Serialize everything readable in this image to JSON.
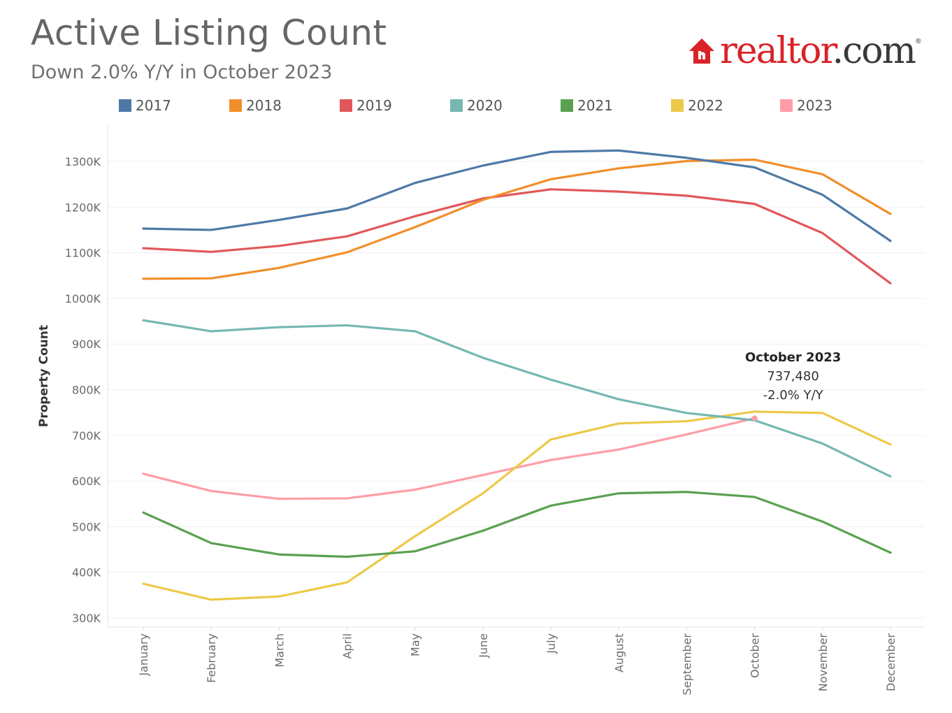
{
  "header": {
    "title": "Active Listing Count",
    "subtitle": "Down 2.0% Y/Y in October 2023",
    "logo_text_red": "realtor",
    "logo_text_dark": ".com",
    "logo_reg": "®"
  },
  "colors": {
    "2017": "#4e79a7",
    "2018": "#f28e2b",
    "2019": "#e15759",
    "2020": "#76b7b2",
    "2021": "#59a14f",
    "2022": "#edc948",
    "2023": "#ff9da7",
    "brand": "#d92228"
  },
  "chart_data": {
    "type": "line",
    "title": "Active Listing Count",
    "subtitle": "Down 2.0% Y/Y in October 2023",
    "xlabel": "",
    "ylabel": "Property Count",
    "ylim": [
      290000,
      1370000
    ],
    "yticks": [
      300000,
      400000,
      500000,
      600000,
      700000,
      800000,
      900000,
      1000000,
      1100000,
      1200000,
      1300000
    ],
    "ytick_labels": [
      "300K",
      "400K",
      "500K",
      "600K",
      "700K",
      "800K",
      "900K",
      "1000K",
      "1100K",
      "1200K",
      "1300K"
    ],
    "categories": [
      "January",
      "February",
      "March",
      "April",
      "May",
      "June",
      "July",
      "August",
      "September",
      "October",
      "November",
      "December"
    ],
    "grid": "horizontal",
    "legend_position": "top",
    "series": [
      {
        "name": "2017",
        "values": [
          1153000,
          1150000,
          1172000,
          1197000,
          1253000,
          1291000,
          1321000,
          1324000,
          1308000,
          1287000,
          1227000,
          1126000
        ]
      },
      {
        "name": "2018",
        "values": [
          1043000,
          1044000,
          1067000,
          1101000,
          1156000,
          1216000,
          1261000,
          1285000,
          1301000,
          1304000,
          1272000,
          1185000
        ]
      },
      {
        "name": "2019",
        "values": [
          1110000,
          1102000,
          1115000,
          1136000,
          1180000,
          1219000,
          1239000,
          1234000,
          1225000,
          1207000,
          1143000,
          1033000
        ]
      },
      {
        "name": "2020",
        "values": [
          952000,
          928000,
          937000,
          941000,
          928000,
          870000,
          822000,
          779000,
          749000,
          733000,
          682000,
          610000
        ]
      },
      {
        "name": "2021",
        "values": [
          531000,
          464000,
          439000,
          434000,
          446000,
          491000,
          546000,
          573000,
          576000,
          565000,
          511000,
          443000
        ]
      },
      {
        "name": "2022",
        "values": [
          375000,
          340000,
          347000,
          378000,
          479000,
          573000,
          691000,
          726000,
          731000,
          752000,
          749000,
          680000
        ]
      },
      {
        "name": "2023",
        "values": [
          616000,
          578000,
          561000,
          562000,
          581000,
          613000,
          646000,
          669000,
          702000,
          737480,
          null,
          null
        ]
      }
    ],
    "annotation": {
      "series": "2023",
      "category": "October",
      "title": "October 2023",
      "value": "737,480",
      "change": "-2.0% Y/Y"
    }
  }
}
